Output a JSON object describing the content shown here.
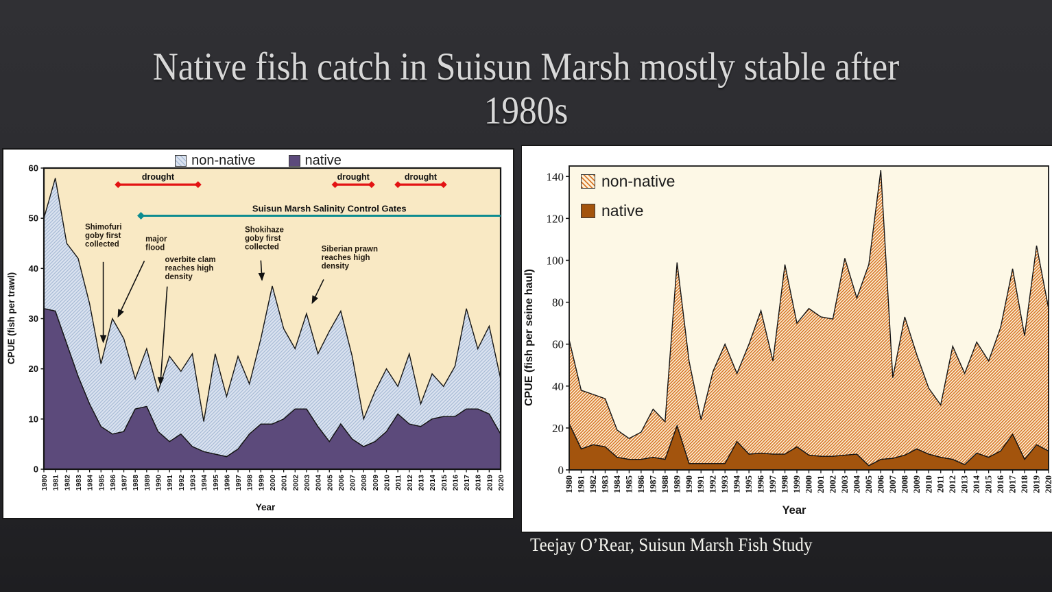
{
  "slide": {
    "title_line1": "Native fish catch in Suisun Marsh mostly stable after",
    "title_line2": "1980s",
    "caption": "Teejay O’Rear, Suisun Marsh Fish Study"
  },
  "chart_data": [
    {
      "id": "trawl",
      "type": "area",
      "stacked": true,
      "title": "",
      "xlabel": "Year",
      "ylabel": "CPUE (fish per trawl)",
      "ylim": [
        0,
        60
      ],
      "yticks": [
        0,
        10,
        20,
        30,
        40,
        50,
        60
      ],
      "grid": false,
      "legend_position": "top-center",
      "plot_background": "#f9e9c4",
      "years": [
        1980,
        1981,
        1982,
        1983,
        1984,
        1985,
        1986,
        1987,
        1988,
        1989,
        1990,
        1991,
        1992,
        1993,
        1994,
        1995,
        1996,
        1997,
        1998,
        1999,
        2000,
        2001,
        2002,
        2003,
        2004,
        2005,
        2006,
        2007,
        2008,
        2009,
        2010,
        2011,
        2012,
        2013,
        2014,
        2015,
        2016,
        2017,
        2018,
        2019,
        2020
      ],
      "series": [
        {
          "name": "native",
          "color": "#5c4a7b",
          "values": [
            32,
            31.5,
            25,
            18.5,
            13,
            8.5,
            7,
            7.5,
            12,
            12.5,
            7.5,
            5.5,
            7,
            4.5,
            3.5,
            3,
            2.5,
            4,
            7,
            9,
            9,
            10,
            12,
            12,
            8.5,
            5.5,
            9,
            6,
            4.5,
            5.5,
            7.5,
            11,
            9,
            8.5,
            10,
            10.5,
            10.5,
            12,
            12,
            11,
            7
          ]
        },
        {
          "name": "non-native",
          "color": "hatched-blue",
          "values": [
            18,
            26.5,
            20,
            23.5,
            20,
            12.5,
            23,
            18.5,
            6,
            11.5,
            8,
            17,
            12.5,
            18.5,
            6,
            20,
            12,
            18.5,
            10,
            17,
            27.5,
            18,
            12,
            19,
            14.5,
            22,
            22.5,
            16.5,
            5.5,
            10,
            12.5,
            5.5,
            14,
            4.5,
            9,
            6,
            10,
            20,
            12,
            17.5,
            11
          ]
        }
      ],
      "droughts": [
        {
          "label": "drought",
          "x1": 1986.5,
          "x2": 1993.5,
          "y": 56.7,
          "ly": 57.7
        },
        {
          "label": "drought",
          "x1": 2005.5,
          "x2": 2008.7,
          "y": 56.7,
          "ly": 57.7
        },
        {
          "label": "drought",
          "x1": 2011.0,
          "x2": 2015.0,
          "y": 56.7,
          "ly": 57.7
        }
      ],
      "gates": {
        "label": "Suisun Marsh Salinity Control Gates",
        "x1": 1988.5,
        "y": 50.5,
        "label_x": 2005.0,
        "label_y": 51.3
      },
      "annotations": [
        {
          "lines": [
            "Shimofuri",
            "goby first",
            "collected"
          ],
          "x": 1983.6,
          "y": 47.8,
          "arrow": {
            "x1": 1985.2,
            "y1": 41.3,
            "x2": 1985.2,
            "y2": 25.3
          }
        },
        {
          "lines": [
            "major",
            "flood"
          ],
          "x": 1988.9,
          "y": 45.4,
          "arrow": {
            "x1": 1988.8,
            "y1": 41.5,
            "x2": 1986.5,
            "y2": 30.4
          }
        },
        {
          "lines": [
            "overbite clam",
            "reaches high",
            "density"
          ],
          "x": 1990.6,
          "y": 41.3,
          "arrow": {
            "x1": 1990.8,
            "y1": 36.4,
            "x2": 1990.2,
            "y2": 16.9
          }
        },
        {
          "lines": [
            "Shokihaze",
            "goby first",
            "collected"
          ],
          "x": 1997.6,
          "y": 47.2,
          "arrow": {
            "x1": 1999.0,
            "y1": 41.6,
            "x2": 1999.1,
            "y2": 37.7
          }
        },
        {
          "lines": [
            "Siberian prawn",
            "reaches high",
            "density"
          ],
          "x": 2004.3,
          "y": 43.4,
          "arrow": {
            "x1": 2004.5,
            "y1": 37.8,
            "x2": 2003.5,
            "y2": 33.1
          }
        }
      ],
      "colors": {
        "drought_red": "#e31313",
        "gates_teal": "#0d8c90",
        "outline": "#151515"
      }
    },
    {
      "id": "seine",
      "type": "area",
      "stacked": true,
      "title": "",
      "xlabel": "Year",
      "ylabel": "CPUE (fish per seine haul)",
      "ylim": [
        0,
        145
      ],
      "yticks": [
        0,
        20,
        40,
        60,
        80,
        100,
        120,
        140
      ],
      "grid": false,
      "legend_position": "inside-top-left",
      "plot_background": "#fdf8e6",
      "years": [
        1980,
        1981,
        1982,
        1983,
        1984,
        1985,
        1986,
        1987,
        1988,
        1989,
        1990,
        1991,
        1992,
        1993,
        1994,
        1995,
        1996,
        1997,
        1998,
        1999,
        2000,
        2001,
        2002,
        2003,
        2004,
        2005,
        2006,
        2007,
        2008,
        2009,
        2010,
        2011,
        2012,
        2013,
        2014,
        2015,
        2016,
        2017,
        2018,
        2019,
        2020
      ],
      "series": [
        {
          "name": "native",
          "color": "#a3540d",
          "values": [
            22,
            10,
            12,
            11,
            6,
            5,
            5,
            6,
            5,
            21,
            3,
            3,
            3,
            3,
            13.5,
            7.5,
            8,
            7.5,
            7.5,
            11,
            7,
            6.5,
            6.5,
            7,
            7.5,
            2,
            5,
            5.5,
            7,
            10,
            7.5,
            6,
            5,
            2.5,
            8,
            6,
            9,
            17,
            5,
            12,
            9
          ]
        },
        {
          "name": "non-native",
          "color": "hatched-orange",
          "values": [
            40,
            28,
            24,
            23,
            13,
            10,
            13,
            23,
            18,
            78,
            49,
            21,
            44,
            57,
            32.5,
            52.5,
            68,
            44.5,
            90.5,
            59,
            70,
            66.5,
            65.5,
            94,
            74.5,
            96,
            138,
            38.5,
            66,
            45,
            31.5,
            25,
            54,
            43.5,
            53,
            46,
            59,
            79,
            59,
            95,
            68
          ]
        }
      ],
      "colors": {
        "outline": "#151515"
      }
    }
  ]
}
